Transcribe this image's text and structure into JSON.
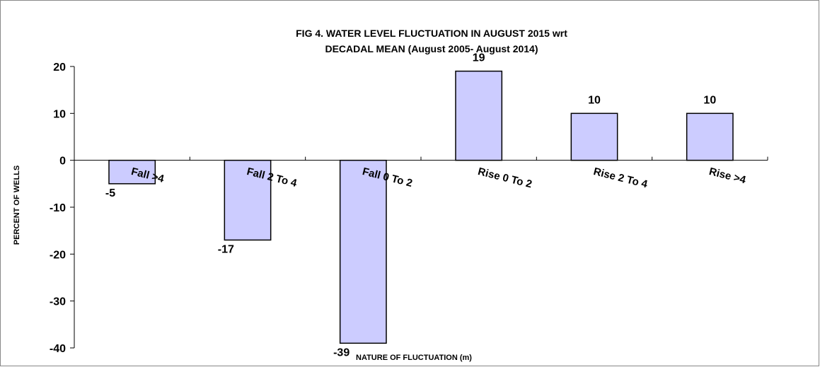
{
  "chart_data": {
    "type": "bar",
    "title": [
      "FIG 4. WATER LEVEL FLUCTUATION IN AUGUST 2015 wrt",
      "DECADAL MEAN (August 2005- August 2014)"
    ],
    "x_label": "NATURE OF FLUCTUATION (m)",
    "y_label": "PERCENT OF WELLS",
    "categories": [
      "Fall >4",
      "Fall 2 To 4",
      "Fall 0 To 2",
      "Rise 0 To 2",
      "Rise 2 To 4",
      "Rise >4"
    ],
    "values": [
      -5,
      -17,
      -39,
      19,
      10,
      10
    ],
    "color": "#ccccff",
    "ylim": [
      -40,
      20
    ],
    "yticks": [
      -40,
      -30,
      -20,
      -10,
      0,
      10,
      20
    ],
    "grid": false
  }
}
